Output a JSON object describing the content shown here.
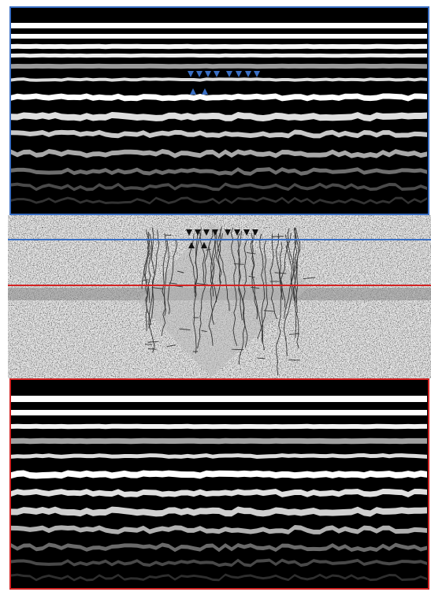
{
  "colors": {
    "top_border": "#3a6fc4",
    "bottom_border": "#d22323",
    "blue_marker": "#3a6fc4",
    "black_marker": "#111111",
    "texture_bg": "#d4d4d4"
  },
  "icons": {
    "down_marker": "triangle-down-icon",
    "up_marker": "triangle-up-icon"
  }
}
